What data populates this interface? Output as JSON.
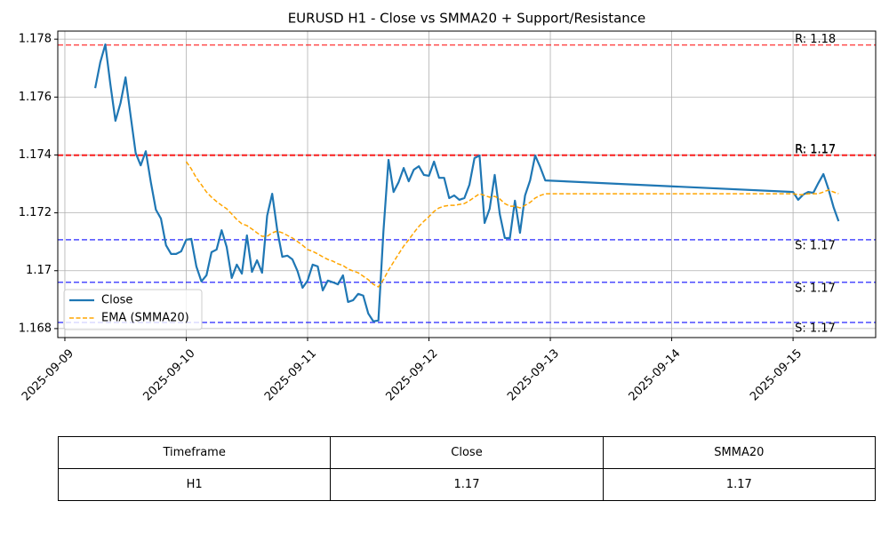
{
  "chart_data": {
    "type": "line",
    "title": "EURUSD H1 - Close vs SMMA20 + Support/Resistance",
    "x": [
      "2025-09-09T06:00",
      "2025-09-09T07:00",
      "2025-09-09T08:00",
      "2025-09-09T09:00",
      "2025-09-09T10:00",
      "2025-09-09T11:00",
      "2025-09-09T12:00",
      "2025-09-09T13:00",
      "2025-09-09T14:00",
      "2025-09-09T15:00",
      "2025-09-09T16:00",
      "2025-09-09T17:00",
      "2025-09-09T18:00",
      "2025-09-09T19:00",
      "2025-09-09T20:00",
      "2025-09-09T21:00",
      "2025-09-09T22:00",
      "2025-09-09T23:00",
      "2025-09-10T00:00",
      "2025-09-10T01:00",
      "2025-09-10T02:00",
      "2025-09-10T03:00",
      "2025-09-10T04:00",
      "2025-09-10T05:00",
      "2025-09-10T06:00",
      "2025-09-10T07:00",
      "2025-09-10T08:00",
      "2025-09-10T09:00",
      "2025-09-10T10:00",
      "2025-09-10T11:00",
      "2025-09-10T12:00",
      "2025-09-10T13:00",
      "2025-09-10T14:00",
      "2025-09-10T15:00",
      "2025-09-10T16:00",
      "2025-09-10T17:00",
      "2025-09-10T18:00",
      "2025-09-10T19:00",
      "2025-09-10T20:00",
      "2025-09-10T21:00",
      "2025-09-10T22:00",
      "2025-09-10T23:00",
      "2025-09-11T00:00",
      "2025-09-11T01:00",
      "2025-09-11T02:00",
      "2025-09-11T03:00",
      "2025-09-11T04:00",
      "2025-09-11T05:00",
      "2025-09-11T06:00",
      "2025-09-11T07:00",
      "2025-09-11T08:00",
      "2025-09-11T09:00",
      "2025-09-11T10:00",
      "2025-09-11T11:00",
      "2025-09-11T12:00",
      "2025-09-11T13:00",
      "2025-09-11T14:00",
      "2025-09-11T15:00",
      "2025-09-11T16:00",
      "2025-09-11T17:00",
      "2025-09-11T18:00",
      "2025-09-11T19:00",
      "2025-09-11T20:00",
      "2025-09-11T21:00",
      "2025-09-11T22:00",
      "2025-09-11T23:00",
      "2025-09-12T00:00",
      "2025-09-12T01:00",
      "2025-09-12T02:00",
      "2025-09-12T03:00",
      "2025-09-12T04:00",
      "2025-09-12T05:00",
      "2025-09-12T06:00",
      "2025-09-12T07:00",
      "2025-09-12T08:00",
      "2025-09-12T09:00",
      "2025-09-12T10:00",
      "2025-09-12T11:00",
      "2025-09-12T12:00",
      "2025-09-12T13:00",
      "2025-09-12T14:00",
      "2025-09-12T15:00",
      "2025-09-12T16:00",
      "2025-09-12T17:00",
      "2025-09-12T18:00",
      "2025-09-12T19:00",
      "2025-09-12T20:00",
      "2025-09-12T21:00",
      "2025-09-12T22:00",
      "2025-09-12T23:00",
      "2025-09-15T00:00",
      "2025-09-15T01:00",
      "2025-09-15T02:00",
      "2025-09-15T03:00",
      "2025-09-15T04:00",
      "2025-09-15T05:00",
      "2025-09-15T06:00",
      "2025-09-15T07:00",
      "2025-09-15T08:00",
      "2025-09-15T09:00"
    ],
    "series": [
      {
        "name": "Close",
        "color": "#1f77b4",
        "dash": false,
        "values": [
          1.17631,
          1.1772,
          1.17782,
          1.17644,
          1.17518,
          1.17579,
          1.17668,
          1.17536,
          1.17407,
          1.17364,
          1.17413,
          1.17306,
          1.17211,
          1.1718,
          1.17088,
          1.17058,
          1.17058,
          1.17067,
          1.17107,
          1.1711,
          1.17015,
          1.16963,
          1.16984,
          1.17064,
          1.17073,
          1.1714,
          1.17082,
          1.16975,
          1.17021,
          1.1699,
          1.17122,
          1.16996,
          1.17036,
          1.16993,
          1.1719,
          1.17266,
          1.1714,
          1.17048,
          1.17052,
          1.17039,
          1.16999,
          1.16941,
          1.16966,
          1.17021,
          1.17015,
          1.16932,
          1.16966,
          1.1696,
          1.16953,
          1.16984,
          1.16892,
          1.16898,
          1.1692,
          1.16914,
          1.16852,
          1.16825,
          1.16828,
          1.17137,
          1.17383,
          1.17272,
          1.17306,
          1.17355,
          1.17309,
          1.17349,
          1.17361,
          1.17331,
          1.17328,
          1.17377,
          1.17321,
          1.17321,
          1.17251,
          1.1726,
          1.17245,
          1.17251,
          1.17297,
          1.17389,
          1.17398,
          1.17165,
          1.17214,
          1.17331,
          1.17196,
          1.17113,
          1.17113,
          1.17242,
          1.17131,
          1.1726,
          1.17312,
          1.17398,
          1.17358,
          1.17312,
          1.17272,
          1.17245,
          1.17263,
          1.17272,
          1.17269,
          1.17303,
          1.17334,
          1.17282,
          1.1722,
          1.17171
        ]
      },
      {
        "name": "EMA (SMMA20)",
        "color": "#ffa500",
        "dash": true,
        "values": [
          null,
          null,
          null,
          null,
          null,
          null,
          null,
          null,
          null,
          null,
          null,
          null,
          null,
          null,
          null,
          null,
          null,
          null,
          1.17377,
          1.17352,
          1.17321,
          1.17297,
          1.17272,
          1.17254,
          1.17239,
          1.17226,
          1.17214,
          1.17196,
          1.17177,
          1.17162,
          1.17156,
          1.17144,
          1.17131,
          1.17119,
          1.17119,
          1.17131,
          1.17137,
          1.17131,
          1.17122,
          1.17113,
          1.17101,
          1.17088,
          1.17073,
          1.17067,
          1.17058,
          1.17048,
          1.17039,
          1.17033,
          1.17024,
          1.17018,
          1.17006,
          1.16999,
          1.16993,
          1.16981,
          1.16969,
          1.16953,
          1.16944,
          1.16969,
          1.17002,
          1.1703,
          1.17058,
          1.17085,
          1.17107,
          1.17131,
          1.17153,
          1.17171,
          1.17187,
          1.17205,
          1.17217,
          1.17223,
          1.17226,
          1.17226,
          1.17229,
          1.17232,
          1.17242,
          1.17254,
          1.17266,
          1.1726,
          1.17254,
          1.17257,
          1.17248,
          1.17232,
          1.17223,
          1.17223,
          1.17217,
          1.17226,
          1.17236,
          1.17251,
          1.1726,
          1.17266,
          1.17266,
          1.17263,
          1.17263,
          1.17266,
          1.17266,
          1.17266,
          1.17272,
          1.17279,
          1.17272,
          1.17266
        ]
      }
    ],
    "resistance": [
      {
        "value": 1.1778,
        "label": "R: 1.18",
        "color": "#ff0000"
      },
      {
        "value": 1.174,
        "label": "R: 1.17",
        "color": "#ff0000"
      },
      {
        "value": 1.17398,
        "label": "R: 1.17",
        "color": "#ff0000"
      }
    ],
    "support": [
      {
        "value": 1.17107,
        "label": "S: 1.17",
        "color": "#0000ff"
      },
      {
        "value": 1.1696,
        "label": "S: 1.17",
        "color": "#0000ff"
      },
      {
        "value": 1.16821,
        "label": "S: 1.17",
        "color": "#0000ff"
      }
    ],
    "xlim": [
      "2025-09-08T22:36",
      "2025-09-15T16:20"
    ],
    "xticks": [
      "2025-09-09",
      "2025-09-10",
      "2025-09-11",
      "2025-09-12",
      "2025-09-13",
      "2025-09-14",
      "2025-09-15"
    ],
    "ylim": [
      1.16769,
      1.17828
    ],
    "yticks": [
      1.168,
      1.17,
      1.172,
      1.174,
      1.176,
      1.178
    ],
    "grid": true,
    "legend": "lower left"
  },
  "table": {
    "header": [
      "Timeframe",
      "Close",
      "SMMA20"
    ],
    "rows": [
      [
        "H1",
        "1.17",
        "1.17"
      ]
    ]
  }
}
